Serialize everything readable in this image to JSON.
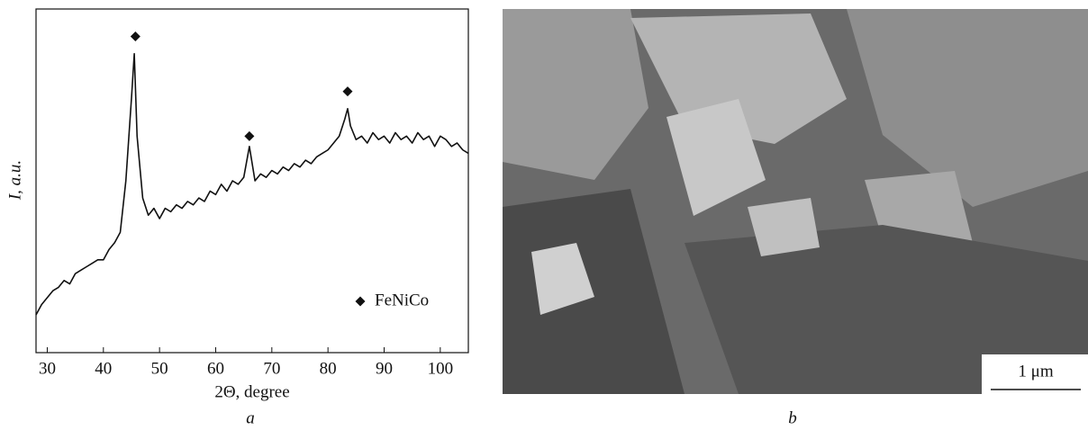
{
  "chart_data": {
    "type": "line",
    "color": "#111111",
    "x_label": "2Θ, degree",
    "y_label": "I, a.u.",
    "panel_label": "a",
    "x": [
      28,
      29,
      30,
      31,
      32,
      33,
      34,
      35,
      36,
      37,
      38,
      39,
      40,
      41,
      42,
      43,
      44,
      45,
      45.5,
      46,
      47,
      48,
      49,
      50,
      51,
      52,
      53,
      54,
      55,
      56,
      57,
      58,
      59,
      60,
      61,
      62,
      63,
      64,
      65,
      66,
      67,
      68,
      69,
      70,
      71,
      72,
      73,
      74,
      75,
      76,
      77,
      78,
      79,
      80,
      81,
      82,
      83,
      83.5,
      84,
      85,
      86,
      87,
      88,
      89,
      90,
      91,
      92,
      93,
      94,
      95,
      96,
      97,
      98,
      99,
      100,
      101,
      102,
      103,
      104,
      105
    ],
    "values": [
      11,
      14,
      16,
      18,
      19,
      21,
      20,
      23,
      24,
      25,
      26,
      27,
      27,
      30,
      32,
      35,
      50,
      74,
      87,
      63,
      45,
      40,
      42,
      39,
      42,
      41,
      43,
      42,
      44,
      43,
      45,
      44,
      47,
      46,
      49,
      47,
      50,
      49,
      51,
      60,
      50,
      52,
      51,
      53,
      52,
      54,
      53,
      55,
      54,
      56,
      55,
      57,
      58,
      59,
      61,
      63,
      68,
      71,
      66,
      62,
      63,
      61,
      64,
      62,
      63,
      61,
      64,
      62,
      63,
      61,
      64,
      62,
      63,
      60,
      63,
      62,
      60,
      61,
      59,
      58
    ],
    "markers": {
      "name": "FeNiCo",
      "color": "#111111",
      "x": [
        45.7,
        66,
        83.5
      ],
      "values": [
        92,
        63,
        76
      ]
    },
    "xlim": [
      28,
      105
    ],
    "ylim": [
      0,
      100
    ],
    "xticks": [
      30,
      40,
      50,
      60,
      70,
      80,
      90,
      100
    ],
    "legend": "lower-right"
  },
  "image": {
    "panel_label": "b",
    "scale_bar": "1 μm"
  }
}
